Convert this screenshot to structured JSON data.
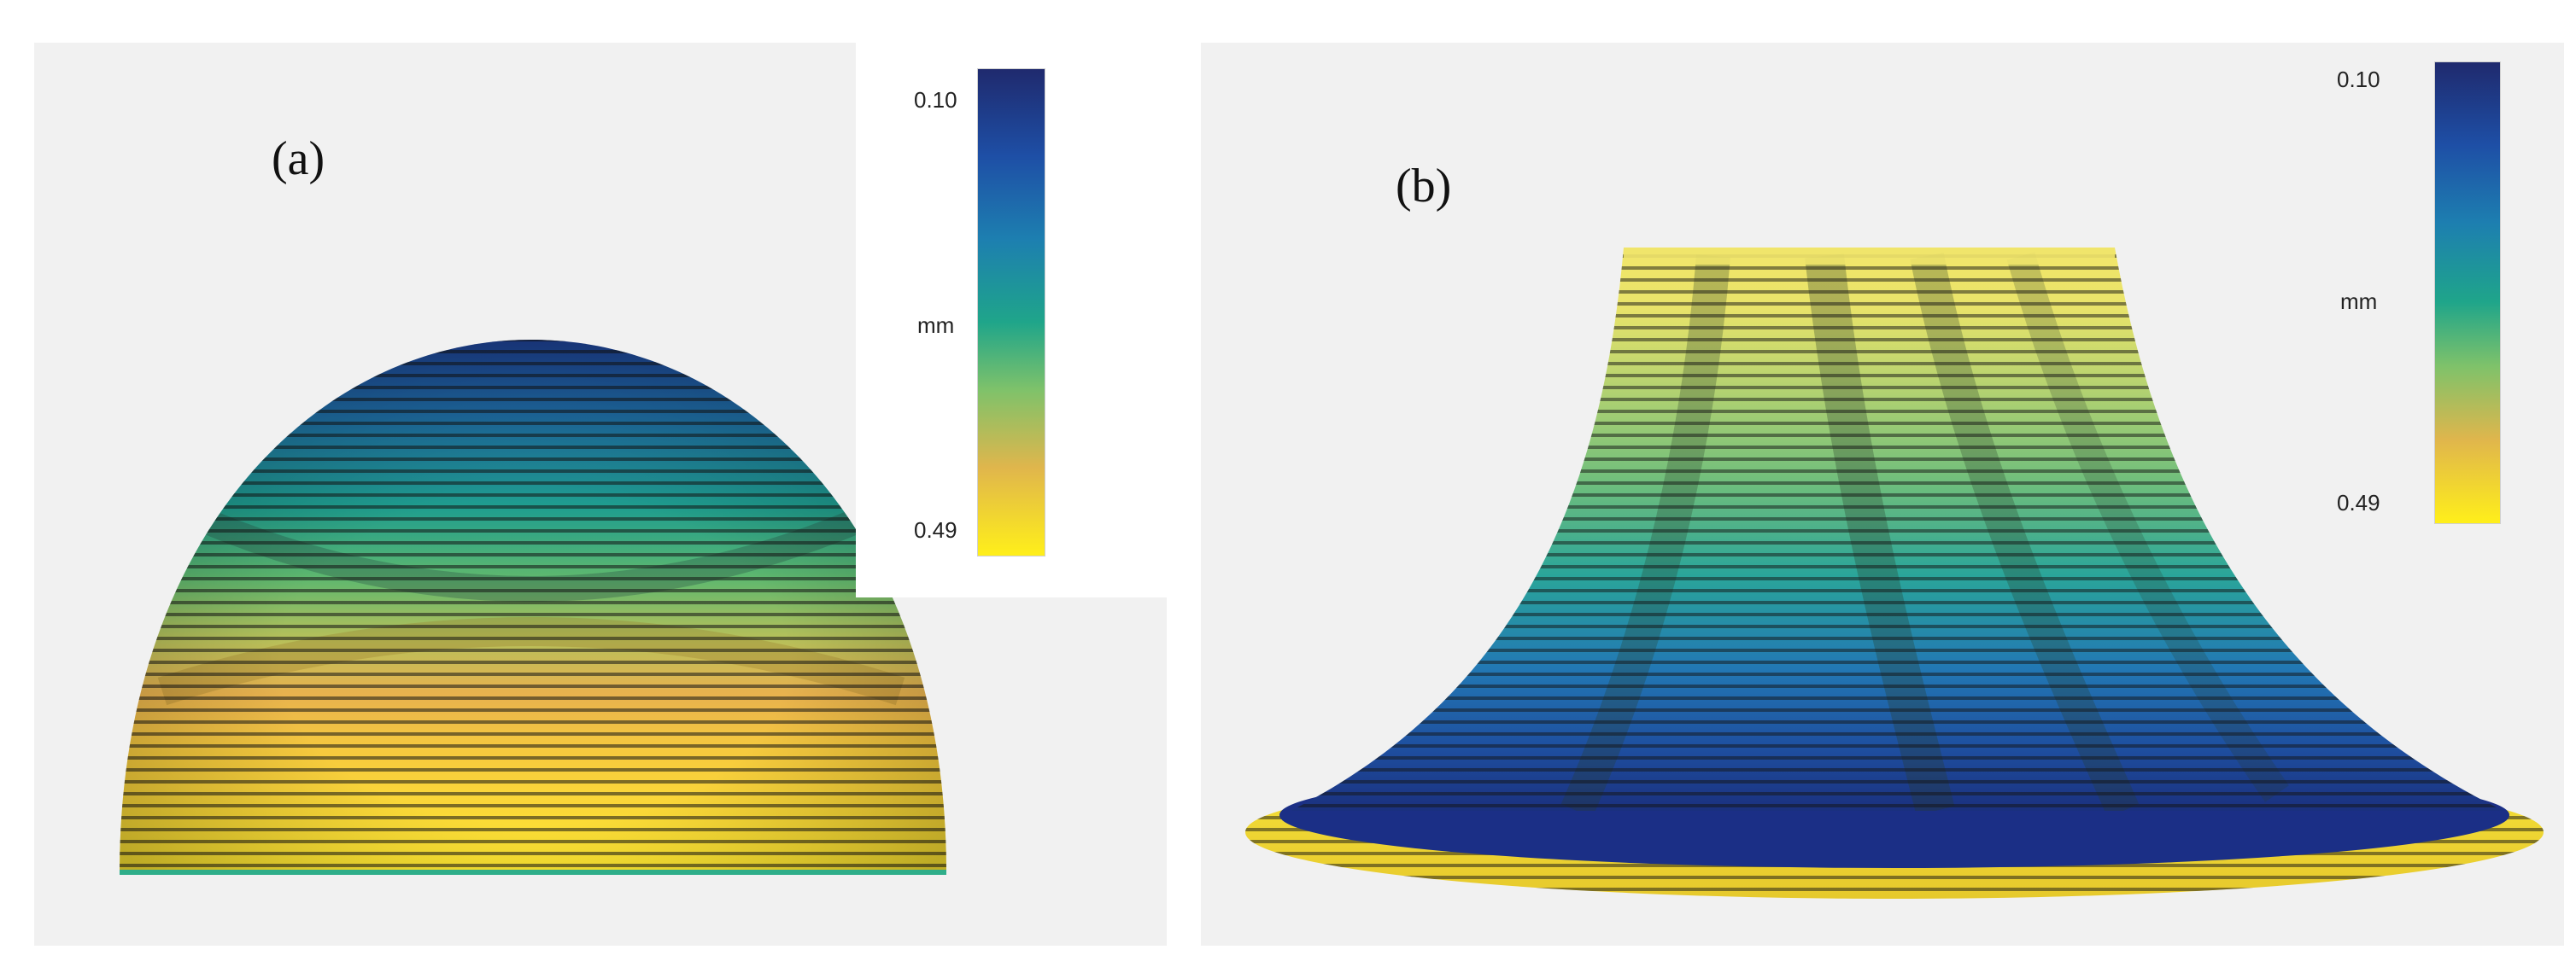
{
  "figure": {
    "panels": [
      {
        "label": "(a)",
        "object": "dome",
        "legend": {
          "max_label": "0.10",
          "unit_label": "mm",
          "min_label": "0.49"
        }
      },
      {
        "label": "(b)",
        "object": "impeller",
        "legend": {
          "max_label": "0.10",
          "unit_label": "mm",
          "min_label": "0.49"
        }
      }
    ],
    "colors": {
      "panel_bg": "#f1f1f1",
      "dark_blue": "#1f2a6e",
      "teal": "#1fa58a",
      "yellow": "#ffef1a"
    }
  }
}
